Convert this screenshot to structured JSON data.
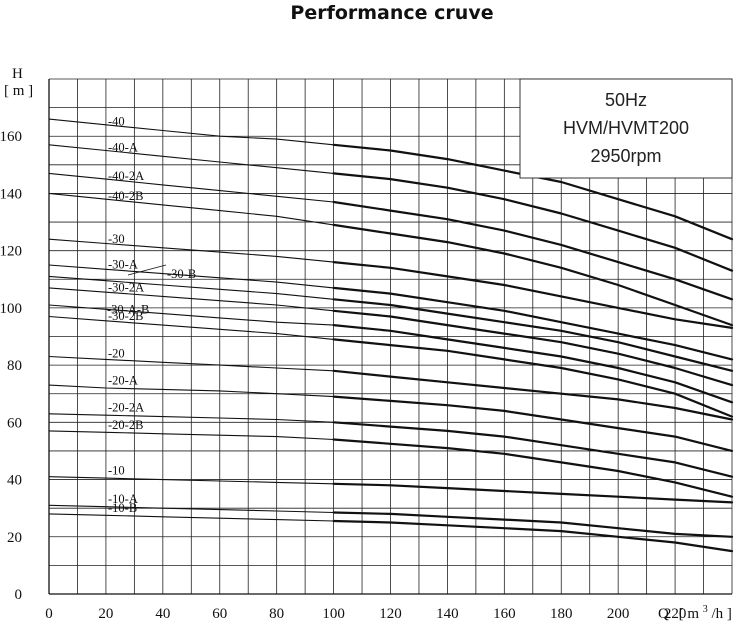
{
  "chart_data": {
    "type": "line",
    "title": "Performance cruve",
    "ylabel_letter": "H",
    "ylabel_unit": "[ m ]",
    "xlabel_letter": "Q",
    "xlabel_unit_prefix": "[ m",
    "xlabel_unit_sup": "3",
    "xlabel_unit_suffix": "/h ]",
    "xlim": [
      0,
      240
    ],
    "ylim": [
      0,
      180
    ],
    "x_ticks": [
      0,
      20,
      40,
      60,
      80,
      100,
      120,
      140,
      160,
      180,
      200,
      220
    ],
    "y_ticks": [
      0,
      20,
      40,
      60,
      80,
      100,
      120,
      140,
      160
    ],
    "grid": true,
    "info_box": [
      "50Hz",
      "HVM/HVMT200",
      "2950rpm"
    ],
    "x": [
      0,
      20,
      40,
      60,
      80,
      100,
      120,
      140,
      160,
      180,
      200,
      220,
      240
    ],
    "bold_from_x": 100,
    "series": [
      {
        "name": "-40",
        "values": [
          166,
          164,
          162,
          160,
          159,
          157,
          155,
          152,
          148,
          144,
          138,
          132,
          124
        ]
      },
      {
        "name": "-40-A",
        "values": [
          157,
          155,
          153,
          151,
          149,
          147,
          145,
          142,
          138,
          133,
          127,
          121,
          113
        ]
      },
      {
        "name": "-40-2A",
        "values": [
          147,
          145,
          143,
          141,
          139,
          137,
          134,
          131,
          127,
          122,
          116,
          110,
          103
        ]
      },
      {
        "name": "-40-2B",
        "values": [
          140,
          138,
          136,
          134,
          132,
          129,
          126,
          123,
          119,
          114,
          108,
          101,
          94
        ]
      },
      {
        "name": "-30",
        "values": [
          124,
          122.5,
          121,
          119.5,
          118,
          116,
          114,
          111,
          108,
          104,
          100,
          96,
          93
        ]
      },
      {
        "name": "-30-A",
        "values": [
          115,
          113.5,
          112,
          110.5,
          109,
          107,
          105,
          102,
          99,
          95,
          91,
          87,
          82
        ]
      },
      {
        "name": "-30-B",
        "values": [
          111,
          109.5,
          108,
          106.5,
          105,
          103,
          101,
          98,
          95,
          92,
          88,
          83,
          78
        ]
      },
      {
        "name": "-30-2A",
        "values": [
          107,
          105.5,
          104,
          102.5,
          101,
          99,
          97,
          94,
          91,
          88,
          84,
          79,
          73
        ]
      },
      {
        "name": "-30-A-B",
        "values": [
          101,
          99.5,
          98,
          96.5,
          95,
          94,
          92,
          89,
          86,
          83,
          79,
          74,
          67
        ]
      },
      {
        "name": "-30-2B",
        "values": [
          97,
          95.5,
          94,
          92.5,
          91,
          89,
          87,
          85,
          82,
          79,
          75,
          70,
          62
        ]
      },
      {
        "name": "-20",
        "values": [
          83,
          82,
          81,
          80,
          79,
          78,
          76,
          74,
          72,
          70,
          68,
          65,
          61
        ]
      },
      {
        "name": "-20-A",
        "values": [
          73,
          72,
          71.5,
          71,
          70,
          69,
          67.5,
          66,
          64,
          61,
          58,
          55,
          50
        ]
      },
      {
        "name": "-20-2A",
        "values": [
          63,
          62.5,
          62,
          61.5,
          61,
          60,
          58.5,
          57,
          55,
          52,
          49,
          46,
          41
        ]
      },
      {
        "name": "-20-2B",
        "values": [
          57,
          56.5,
          56,
          55.5,
          55,
          54,
          52.5,
          51,
          49,
          46,
          43,
          39,
          34
        ]
      },
      {
        "name": "-10",
        "values": [
          41,
          40.5,
          40,
          39.5,
          39,
          38.5,
          38,
          37,
          36,
          35,
          34,
          33,
          32
        ]
      },
      {
        "name": "-10-A",
        "values": [
          31,
          30.5,
          30,
          29.5,
          29,
          28.5,
          28,
          27,
          26,
          25,
          23,
          21,
          20
        ]
      },
      {
        "name": "-10-B",
        "values": [
          28,
          27.5,
          27,
          26.5,
          26,
          25.5,
          25,
          24,
          23,
          22,
          20,
          18,
          15
        ]
      }
    ]
  }
}
